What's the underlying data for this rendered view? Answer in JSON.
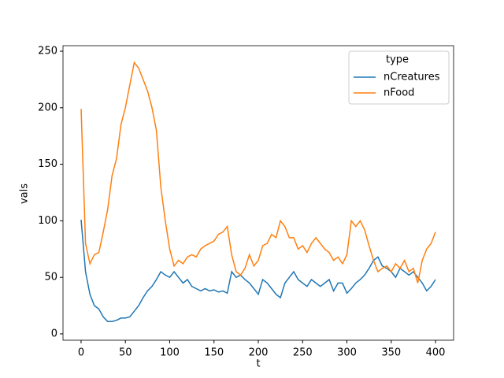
{
  "chart_data": {
    "type": "line",
    "xlabel": "t",
    "ylabel": "vals",
    "legend_title": "type",
    "legend_loc": "upper right",
    "x": [
      0,
      5,
      10,
      15,
      20,
      25,
      30,
      35,
      40,
      45,
      50,
      55,
      60,
      65,
      70,
      75,
      80,
      85,
      90,
      95,
      100,
      105,
      110,
      115,
      120,
      125,
      130,
      135,
      140,
      145,
      150,
      155,
      160,
      165,
      170,
      175,
      180,
      185,
      190,
      195,
      200,
      205,
      210,
      215,
      220,
      225,
      230,
      235,
      240,
      245,
      250,
      255,
      260,
      265,
      270,
      275,
      280,
      285,
      290,
      295,
      300,
      305,
      310,
      315,
      320,
      325,
      330,
      335,
      340,
      345,
      350,
      355,
      360,
      365,
      370,
      375,
      380,
      385,
      390,
      395,
      400
    ],
    "series": [
      {
        "name": "nCreatures",
        "color": "#1f77b4",
        "values": [
          101,
          55,
          35,
          25,
          22,
          15,
          11,
          11,
          12,
          14,
          14,
          15,
          20,
          25,
          32,
          38,
          42,
          48,
          55,
          52,
          50,
          55,
          50,
          45,
          48,
          42,
          40,
          38,
          40,
          38,
          39,
          37,
          38,
          36,
          55,
          50,
          52,
          48,
          45,
          40,
          35,
          48,
          45,
          40,
          35,
          32,
          45,
          50,
          55,
          48,
          45,
          42,
          48,
          45,
          42,
          45,
          48,
          38,
          45,
          45,
          36,
          40,
          45,
          48,
          52,
          58,
          65,
          68,
          60,
          58,
          55,
          50,
          58,
          55,
          52,
          55,
          50,
          45,
          38,
          42,
          48
        ]
      },
      {
        "name": "nFood",
        "color": "#ff7f0e",
        "values": [
          199,
          80,
          62,
          70,
          72,
          90,
          110,
          140,
          155,
          185,
          200,
          220,
          240,
          235,
          225,
          215,
          200,
          180,
          130,
          100,
          75,
          60,
          65,
          62,
          68,
          70,
          68,
          75,
          78,
          80,
          82,
          88,
          90,
          95,
          70,
          55,
          52,
          58,
          70,
          60,
          65,
          78,
          80,
          88,
          85,
          100,
          95,
          85,
          85,
          75,
          78,
          72,
          80,
          85,
          80,
          75,
          72,
          65,
          68,
          62,
          70,
          100,
          95,
          100,
          92,
          78,
          65,
          55,
          58,
          60,
          55,
          62,
          58,
          65,
          55,
          58,
          45,
          65,
          75,
          80,
          90
        ]
      }
    ],
    "xlim": [
      -20.4,
      420.4
    ],
    "ylim": [
      -5.6,
      254.9
    ],
    "xticks": [
      0,
      50,
      100,
      150,
      200,
      250,
      300,
      350,
      400
    ],
    "yticks": [
      0,
      50,
      100,
      150,
      200,
      250
    ]
  }
}
